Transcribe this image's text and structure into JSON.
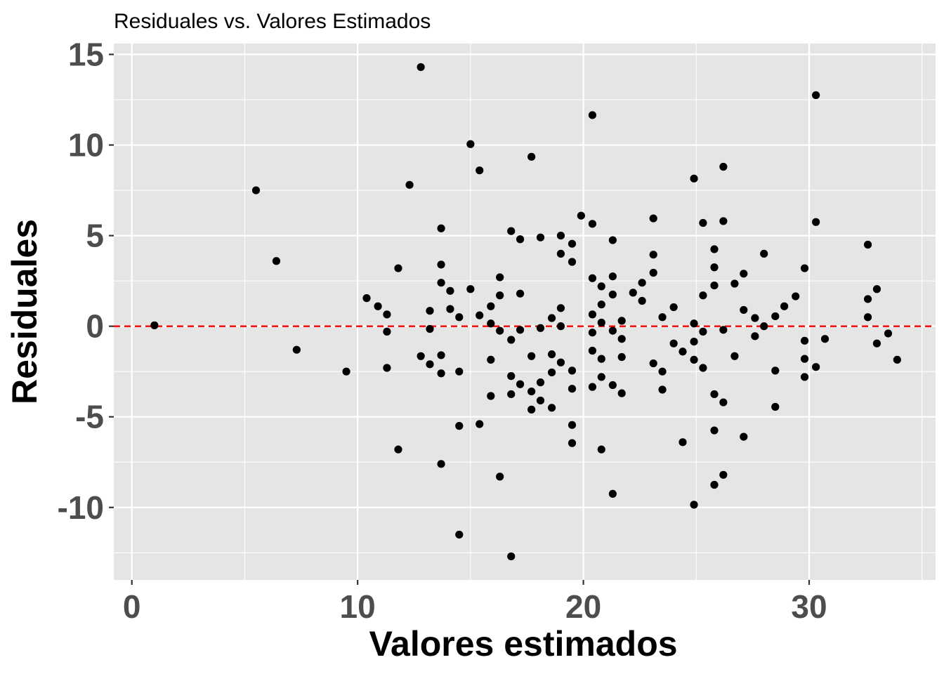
{
  "chart_data": {
    "type": "scatter",
    "title": "Residuales vs. Valores Estimados",
    "xlabel": "Valores estimados",
    "ylabel": "Residuales",
    "xlim": [
      -0.8,
      35.6
    ],
    "ylim": [
      -14,
      15.6
    ],
    "x_ticks": [
      0,
      10,
      20,
      30
    ],
    "x_tick_labels": [
      "0",
      "10",
      "20",
      "30"
    ],
    "y_ticks": [
      15,
      10,
      5,
      0,
      -5,
      -10
    ],
    "y_tick_labels": [
      "15",
      "10",
      "5",
      "0",
      "-5",
      "-10"
    ],
    "x_minor_ticks": [
      5,
      15,
      25,
      35
    ],
    "y_minor_ticks": [
      12.5,
      7.5,
      2.5,
      -2.5,
      -7.5,
      -12.5
    ],
    "grid": true,
    "reference_line": {
      "y": 0,
      "style": "dashed",
      "color": "#ff0000"
    },
    "colors": {
      "panel": "#e5e5e5",
      "grid": "#ffffff",
      "point": "#000000",
      "reference": "#ff0000"
    },
    "points": [
      {
        "x": 1.0,
        "y": 0.05
      },
      {
        "x": 5.5,
        "y": 7.5
      },
      {
        "x": 6.4,
        "y": 3.6
      },
      {
        "x": 7.3,
        "y": -1.3
      },
      {
        "x": 9.5,
        "y": -2.5
      },
      {
        "x": 10.4,
        "y": 1.55
      },
      {
        "x": 10.9,
        "y": 1.1
      },
      {
        "x": 11.3,
        "y": 0.65
      },
      {
        "x": 11.3,
        "y": -0.3
      },
      {
        "x": 11.3,
        "y": -2.3
      },
      {
        "x": 11.8,
        "y": 3.2
      },
      {
        "x": 11.8,
        "y": -6.8
      },
      {
        "x": 12.3,
        "y": 7.8
      },
      {
        "x": 12.8,
        "y": 14.3
      },
      {
        "x": 12.8,
        "y": -1.65
      },
      {
        "x": 13.2,
        "y": 0.85
      },
      {
        "x": 13.2,
        "y": -0.15
      },
      {
        "x": 13.2,
        "y": -2.1
      },
      {
        "x": 13.7,
        "y": 5.4
      },
      {
        "x": 13.7,
        "y": 3.4
      },
      {
        "x": 13.7,
        "y": 2.4
      },
      {
        "x": 13.7,
        "y": -1.6
      },
      {
        "x": 13.7,
        "y": -2.6
      },
      {
        "x": 13.7,
        "y": -7.6
      },
      {
        "x": 14.1,
        "y": 1.95
      },
      {
        "x": 14.1,
        "y": 0.95
      },
      {
        "x": 14.5,
        "y": 0.5
      },
      {
        "x": 14.5,
        "y": -2.5
      },
      {
        "x": 14.5,
        "y": -5.5
      },
      {
        "x": 14.5,
        "y": -11.5
      },
      {
        "x": 15.0,
        "y": 10.05
      },
      {
        "x": 15.0,
        "y": 2.05
      },
      {
        "x": 15.4,
        "y": 8.6
      },
      {
        "x": 15.4,
        "y": 0.6
      },
      {
        "x": 15.4,
        "y": -5.4
      },
      {
        "x": 15.9,
        "y": 1.1
      },
      {
        "x": 15.9,
        "y": 0.15
      },
      {
        "x": 15.9,
        "y": -1.85
      },
      {
        "x": 15.9,
        "y": -3.85
      },
      {
        "x": 16.3,
        "y": 2.7
      },
      {
        "x": 16.3,
        "y": 1.7
      },
      {
        "x": 16.3,
        "y": -0.25
      },
      {
        "x": 16.3,
        "y": -8.3
      },
      {
        "x": 16.8,
        "y": 5.25
      },
      {
        "x": 16.8,
        "y": -0.75
      },
      {
        "x": 16.8,
        "y": -2.75
      },
      {
        "x": 16.8,
        "y": -3.75
      },
      {
        "x": 16.8,
        "y": -12.7
      },
      {
        "x": 17.2,
        "y": 4.8
      },
      {
        "x": 17.2,
        "y": 1.8
      },
      {
        "x": 17.2,
        "y": -0.2
      },
      {
        "x": 17.2,
        "y": -3.2
      },
      {
        "x": 17.7,
        "y": 9.35
      },
      {
        "x": 17.7,
        "y": -1.65
      },
      {
        "x": 17.7,
        "y": -3.6
      },
      {
        "x": 17.7,
        "y": -4.6
      },
      {
        "x": 18.1,
        "y": 4.9
      },
      {
        "x": 18.1,
        "y": -0.1
      },
      {
        "x": 18.1,
        "y": -3.1
      },
      {
        "x": 18.1,
        "y": -4.1
      },
      {
        "x": 18.6,
        "y": 0.45
      },
      {
        "x": 18.6,
        "y": -1.55
      },
      {
        "x": 18.6,
        "y": -2.55
      },
      {
        "x": 18.6,
        "y": -4.5
      },
      {
        "x": 19.0,
        "y": 5.0
      },
      {
        "x": 19.0,
        "y": 4.0
      },
      {
        "x": 19.0,
        "y": 1.0
      },
      {
        "x": 19.0,
        "y": 0.0
      },
      {
        "x": 19.0,
        "y": -2.0
      },
      {
        "x": 19.5,
        "y": 4.55
      },
      {
        "x": 19.5,
        "y": 3.55
      },
      {
        "x": 19.5,
        "y": -2.45
      },
      {
        "x": 19.5,
        "y": -3.45
      },
      {
        "x": 19.5,
        "y": -5.45
      },
      {
        "x": 19.5,
        "y": -6.45
      },
      {
        "x": 19.9,
        "y": 6.1
      },
      {
        "x": 20.4,
        "y": 11.65
      },
      {
        "x": 20.4,
        "y": 5.65
      },
      {
        "x": 20.4,
        "y": 2.65
      },
      {
        "x": 20.4,
        "y": 0.65
      },
      {
        "x": 20.4,
        "y": -0.35
      },
      {
        "x": 20.4,
        "y": -1.35
      },
      {
        "x": 20.4,
        "y": -3.35
      },
      {
        "x": 20.8,
        "y": 2.2
      },
      {
        "x": 20.8,
        "y": 1.2
      },
      {
        "x": 20.8,
        "y": 0.2
      },
      {
        "x": 20.8,
        "y": -1.8
      },
      {
        "x": 20.8,
        "y": -2.8
      },
      {
        "x": 20.8,
        "y": -6.8
      },
      {
        "x": 21.3,
        "y": 4.75
      },
      {
        "x": 21.3,
        "y": 2.75
      },
      {
        "x": 21.3,
        "y": 1.75
      },
      {
        "x": 21.3,
        "y": -0.25
      },
      {
        "x": 21.3,
        "y": -3.25
      },
      {
        "x": 21.3,
        "y": -9.25
      },
      {
        "x": 21.7,
        "y": 0.3
      },
      {
        "x": 21.7,
        "y": -0.7
      },
      {
        "x": 21.7,
        "y": -1.7
      },
      {
        "x": 21.7,
        "y": -3.7
      },
      {
        "x": 22.2,
        "y": 1.85
      },
      {
        "x": 22.6,
        "y": 2.4
      },
      {
        "x": 22.6,
        "y": 1.4
      },
      {
        "x": 23.1,
        "y": 5.95
      },
      {
        "x": 23.1,
        "y": 3.95
      },
      {
        "x": 23.1,
        "y": 2.95
      },
      {
        "x": 23.1,
        "y": -2.05
      },
      {
        "x": 23.5,
        "y": 0.5
      },
      {
        "x": 23.5,
        "y": -2.5
      },
      {
        "x": 23.5,
        "y": -3.5
      },
      {
        "x": 24.0,
        "y": 1.05
      },
      {
        "x": 24.0,
        "y": -0.95
      },
      {
        "x": 24.4,
        "y": -1.4
      },
      {
        "x": 24.4,
        "y": -6.4
      },
      {
        "x": 24.9,
        "y": 8.15
      },
      {
        "x": 24.9,
        "y": 0.15
      },
      {
        "x": 24.9,
        "y": -0.85
      },
      {
        "x": 24.9,
        "y": -1.85
      },
      {
        "x": 24.9,
        "y": -9.85
      },
      {
        "x": 25.3,
        "y": 5.7
      },
      {
        "x": 25.3,
        "y": 1.7
      },
      {
        "x": 25.3,
        "y": -0.3
      },
      {
        "x": 25.3,
        "y": -2.3
      },
      {
        "x": 25.8,
        "y": 4.25
      },
      {
        "x": 25.8,
        "y": 3.25
      },
      {
        "x": 25.8,
        "y": 2.25
      },
      {
        "x": 25.8,
        "y": -3.75
      },
      {
        "x": 25.8,
        "y": -5.75
      },
      {
        "x": 25.8,
        "y": -8.75
      },
      {
        "x": 26.2,
        "y": 8.8
      },
      {
        "x": 26.2,
        "y": 5.8
      },
      {
        "x": 26.2,
        "y": -0.2
      },
      {
        "x": 26.2,
        "y": -4.2
      },
      {
        "x": 26.2,
        "y": -8.2
      },
      {
        "x": 26.7,
        "y": 2.35
      },
      {
        "x": 26.7,
        "y": -1.65
      },
      {
        "x": 27.1,
        "y": 2.9
      },
      {
        "x": 27.1,
        "y": 0.9
      },
      {
        "x": 27.1,
        "y": -6.1
      },
      {
        "x": 27.6,
        "y": 0.45
      },
      {
        "x": 27.6,
        "y": -0.55
      },
      {
        "x": 28.0,
        "y": 4.0
      },
      {
        "x": 28.0,
        "y": 0.0
      },
      {
        "x": 28.5,
        "y": 0.55
      },
      {
        "x": 28.5,
        "y": -2.45
      },
      {
        "x": 28.5,
        "y": -4.45
      },
      {
        "x": 28.9,
        "y": 1.1
      },
      {
        "x": 29.4,
        "y": 1.65
      },
      {
        "x": 29.8,
        "y": 3.2
      },
      {
        "x": 29.8,
        "y": -0.8
      },
      {
        "x": 29.8,
        "y": -1.8
      },
      {
        "x": 29.8,
        "y": -2.8
      },
      {
        "x": 30.3,
        "y": 12.75
      },
      {
        "x": 30.3,
        "y": 5.75
      },
      {
        "x": 30.3,
        "y": -2.25
      },
      {
        "x": 30.7,
        "y": -0.7
      },
      {
        "x": 32.6,
        "y": 4.5
      },
      {
        "x": 32.6,
        "y": 1.5
      },
      {
        "x": 32.6,
        "y": 0.5
      },
      {
        "x": 33.0,
        "y": 2.05
      },
      {
        "x": 33.0,
        "y": -0.95
      },
      {
        "x": 33.5,
        "y": -0.4
      },
      {
        "x": 33.9,
        "y": -1.85
      }
    ]
  }
}
